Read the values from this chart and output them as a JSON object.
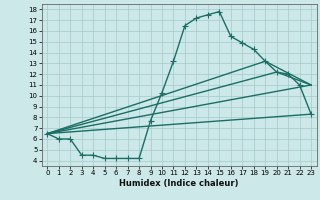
{
  "xlabel": "Humidex (Indice chaleur)",
  "bg_color": "#cce8e8",
  "grid_color": "#aacece",
  "line_color": "#1a6e65",
  "xlim": [
    -0.5,
    23.5
  ],
  "ylim": [
    3.5,
    18.5
  ],
  "xticks": [
    0,
    1,
    2,
    3,
    4,
    5,
    6,
    7,
    8,
    9,
    10,
    11,
    12,
    13,
    14,
    15,
    16,
    17,
    18,
    19,
    20,
    21,
    22,
    23
  ],
  "yticks": [
    4,
    5,
    6,
    7,
    8,
    9,
    10,
    11,
    12,
    13,
    14,
    15,
    16,
    17,
    18
  ],
  "line1_x": [
    0,
    1,
    2,
    3,
    4,
    5,
    6,
    7,
    8,
    9,
    10,
    11,
    12,
    13,
    14,
    15,
    16,
    17,
    18,
    19,
    20,
    21,
    22,
    23
  ],
  "line1_y": [
    6.5,
    6.0,
    6.0,
    4.5,
    4.5,
    4.2,
    4.2,
    4.2,
    4.2,
    7.7,
    10.3,
    13.2,
    16.5,
    17.2,
    17.5,
    17.8,
    15.5,
    14.9,
    14.3,
    13.2,
    12.2,
    12.0,
    11.0,
    8.3
  ],
  "line2_x": [
    0,
    23
  ],
  "line2_y": [
    6.5,
    11.0
  ],
  "line3_x": [
    0,
    20,
    23
  ],
  "line3_y": [
    6.5,
    12.2,
    11.0
  ],
  "line4_x": [
    0,
    19,
    23
  ],
  "line4_y": [
    6.5,
    13.2,
    11.0
  ],
  "line5_x": [
    0,
    23
  ],
  "line5_y": [
    6.5,
    8.3
  ],
  "markersize": 2.5,
  "linewidth": 1.0
}
